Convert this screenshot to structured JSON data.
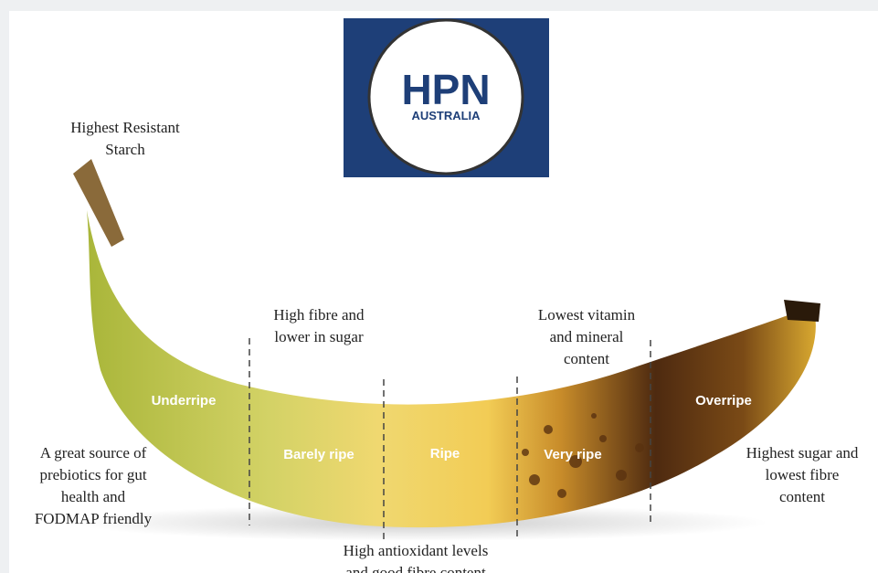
{
  "logo": {
    "title": "HPN",
    "subtitle": "AUSTRALIA"
  },
  "stages": [
    "Underripe",
    "Barely ripe",
    "Ripe",
    "Very ripe",
    "Overripe"
  ],
  "annotations": {
    "stem": [
      "Highest Resistant",
      "Starch"
    ],
    "barely_ripe": [
      "High fibre and",
      "lower in sugar"
    ],
    "very_ripe": [
      "Lowest vitamin",
      "and mineral",
      "content"
    ],
    "underripe": [
      "A great source of",
      "prebiotics for gut",
      "health and",
      "FODMAP friendly"
    ],
    "overripe": [
      "Highest sugar and",
      "lowest fibre",
      "content"
    ],
    "ripe": [
      "High antioxidant levels",
      "and good fibre content"
    ]
  }
}
